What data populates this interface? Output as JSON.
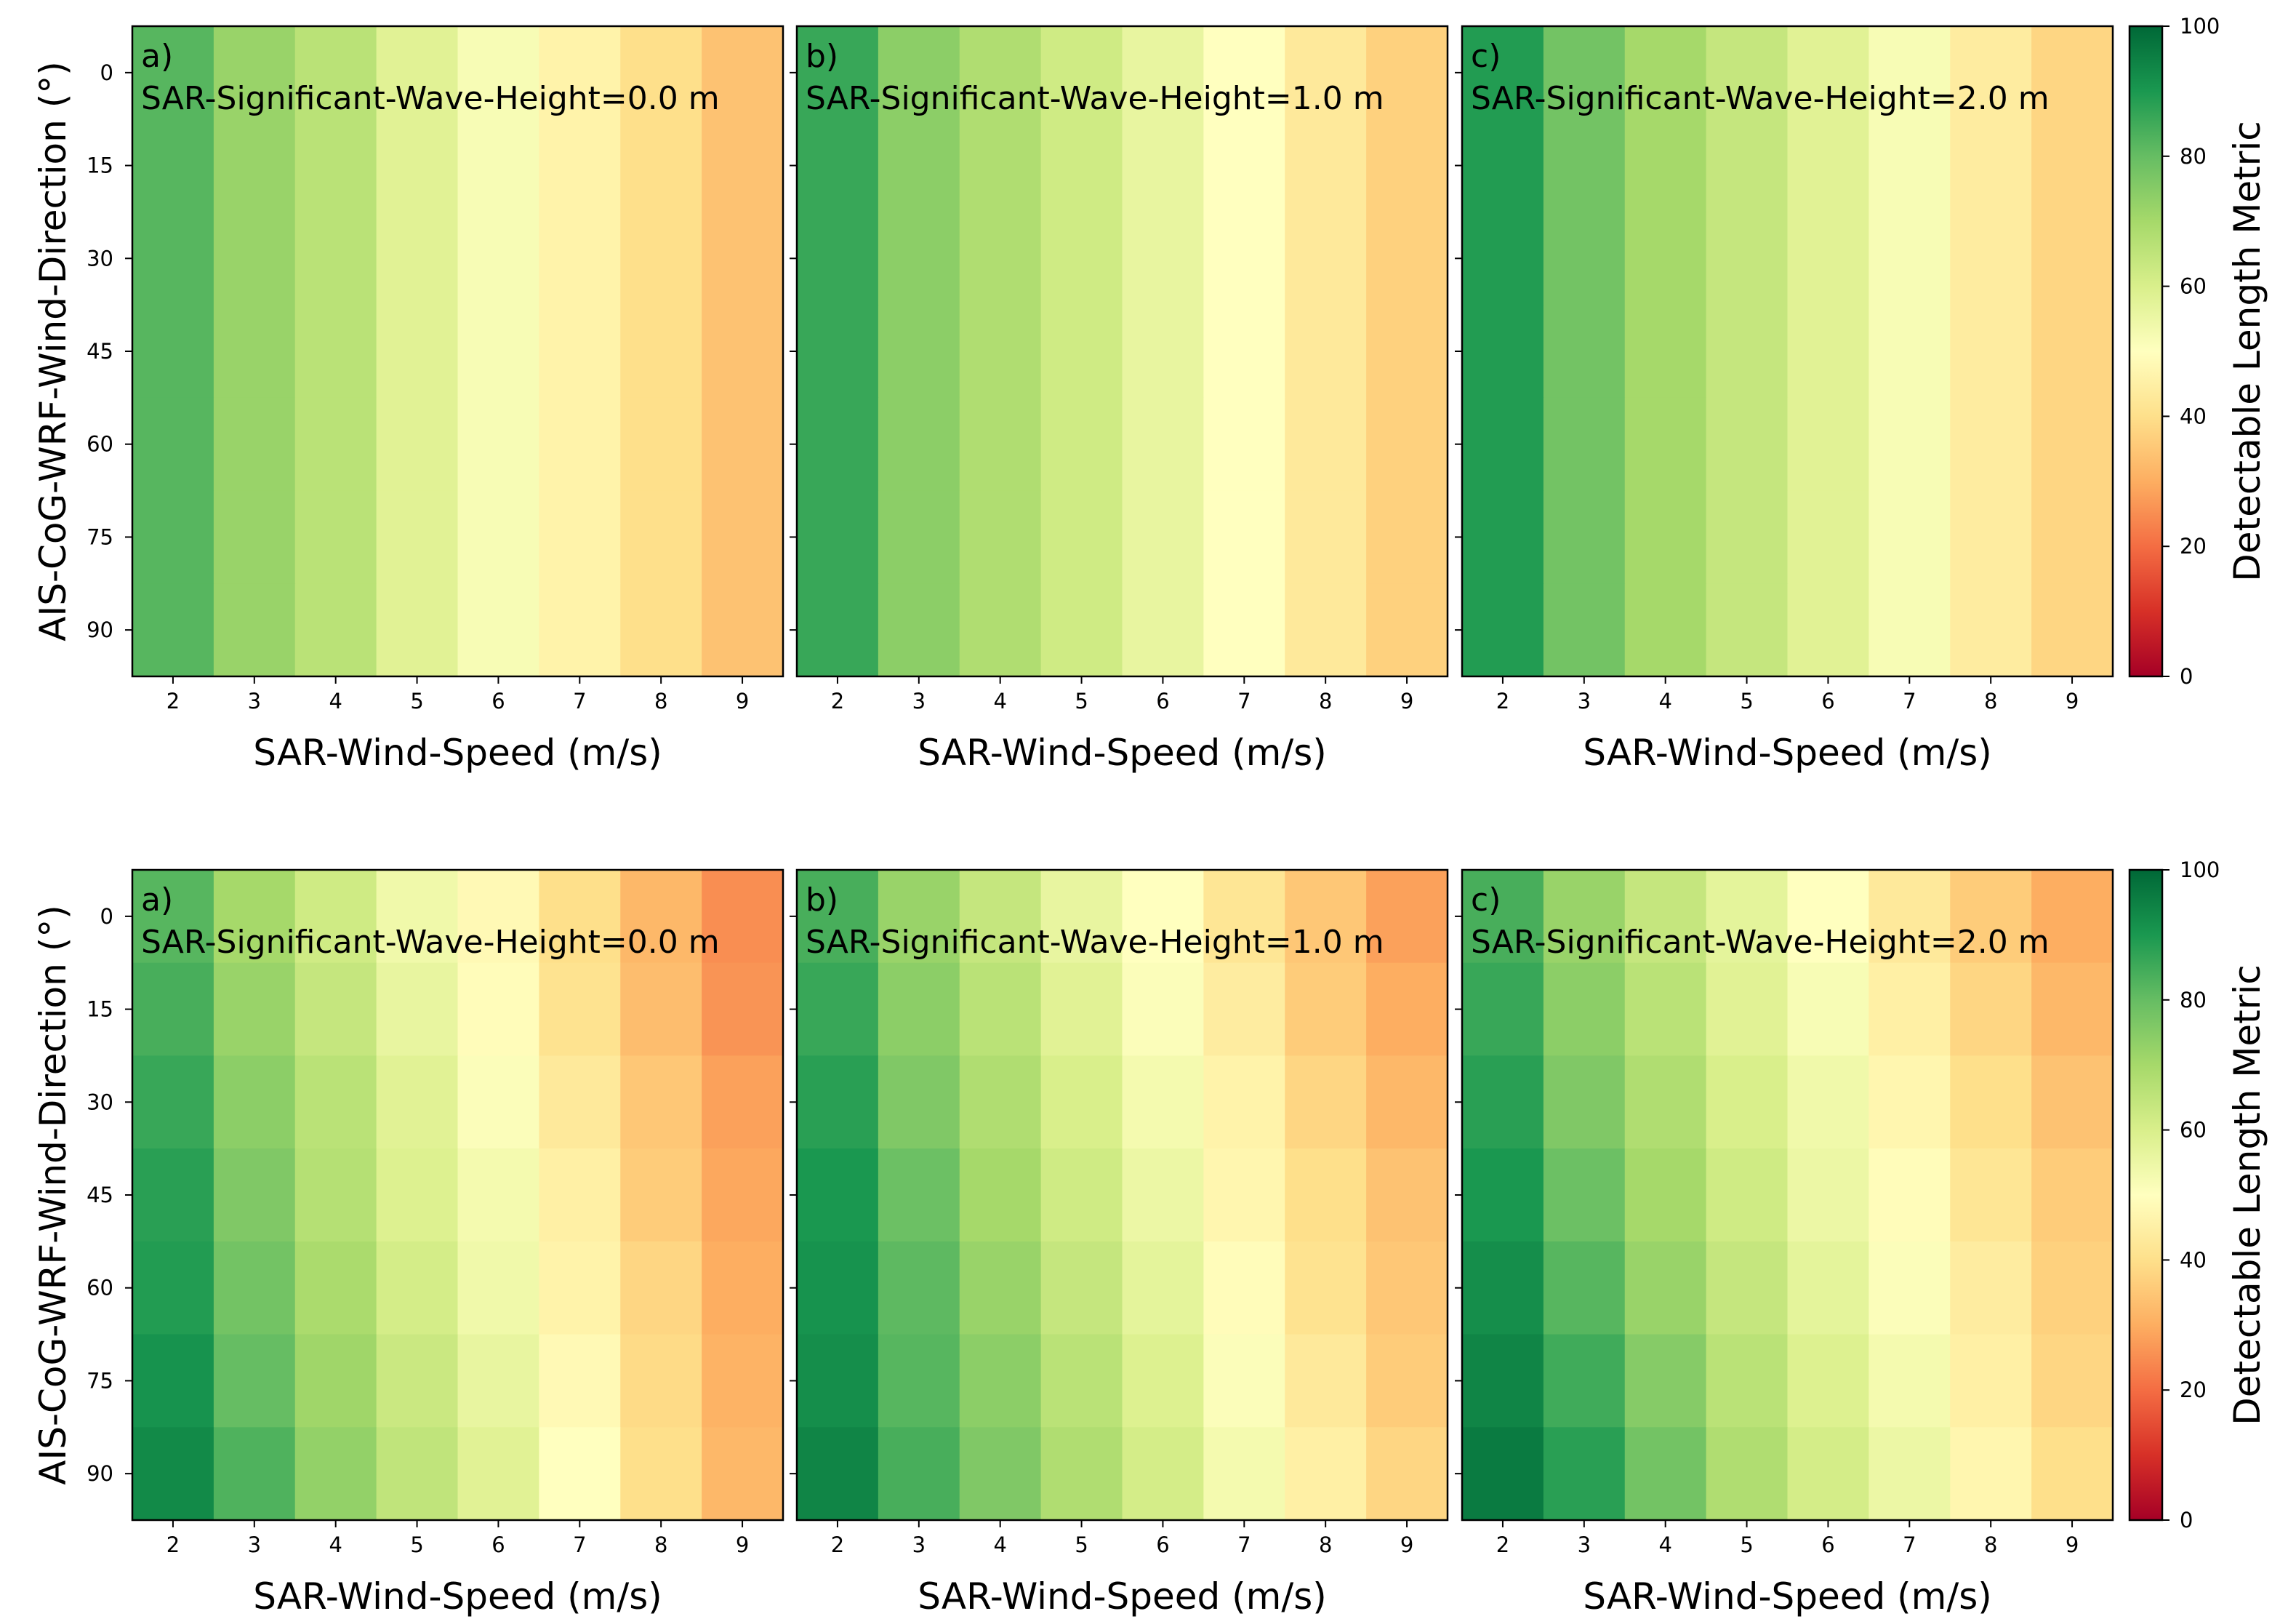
{
  "chart_data": [
    {
      "type": "heatmap",
      "row": "top",
      "colorbar": {
        "label": "Detectable Length Metric",
        "ticks": [
          0,
          20,
          40,
          60,
          80,
          100
        ],
        "range": [
          0,
          100
        ],
        "colormap": "RdYlGn",
        "colors": [
          "#a50026",
          "#d73027",
          "#f46d43",
          "#fdae61",
          "#fee08b",
          "#ffffbf",
          "#d9ef8b",
          "#a6d96a",
          "#66bd63",
          "#1a9850",
          "#006837"
        ]
      },
      "panels": [
        {
          "label": "a)",
          "title": "SAR-Significant-Wave-Height=0.0 m",
          "xlabel": "SAR-Wind-Speed (m/s)",
          "ylabel": "AIS-CoG-WRF-Wind-Direction (°)",
          "x": [
            2,
            3,
            4,
            5,
            6,
            7,
            8,
            9
          ],
          "y": [
            0,
            15,
            30,
            45,
            60,
            75,
            90
          ],
          "x_tick_labels": [
            "2",
            "3",
            "4",
            "5",
            "6",
            "7",
            "8",
            "9"
          ],
          "y_tick_labels": [
            "0",
            "15",
            "30",
            "45",
            "60",
            "75",
            "90"
          ],
          "values": [
            [
              82,
              72,
              66,
              58,
              52,
              46,
              40,
              34
            ],
            [
              82,
              72,
              66,
              58,
              52,
              46,
              40,
              34
            ],
            [
              82,
              72,
              66,
              58,
              52,
              46,
              40,
              34
            ],
            [
              82,
              72,
              66,
              58,
              52,
              46,
              40,
              34
            ],
            [
              82,
              72,
              66,
              58,
              52,
              46,
              40,
              34
            ],
            [
              82,
              72,
              66,
              58,
              52,
              46,
              40,
              34
            ],
            [
              82,
              72,
              66,
              58,
              52,
              46,
              40,
              34
            ]
          ]
        },
        {
          "label": "b)",
          "title": "SAR-Significant-Wave-Height=1.0 m",
          "xlabel": "SAR-Wind-Speed (m/s)",
          "ylabel": "",
          "x": [
            2,
            3,
            4,
            5,
            6,
            7,
            8,
            9
          ],
          "y": [
            0,
            15,
            30,
            45,
            60,
            75,
            90
          ],
          "x_tick_labels": [
            "2",
            "3",
            "4",
            "5",
            "6",
            "7",
            "8",
            "9"
          ],
          "y_tick_labels": [],
          "values": [
            [
              86,
              74,
              68,
              62,
              56,
              50,
              43,
              37
            ],
            [
              86,
              74,
              68,
              62,
              56,
              50,
              43,
              37
            ],
            [
              86,
              74,
              68,
              62,
              56,
              50,
              43,
              37
            ],
            [
              86,
              74,
              68,
              62,
              56,
              50,
              43,
              37
            ],
            [
              86,
              74,
              68,
              62,
              56,
              50,
              43,
              37
            ],
            [
              86,
              74,
              68,
              62,
              56,
              50,
              43,
              37
            ],
            [
              86,
              74,
              68,
              62,
              56,
              50,
              43,
              37
            ]
          ]
        },
        {
          "label": "c)",
          "title": "SAR-Significant-Wave-Height=2.0 m",
          "xlabel": "SAR-Wind-Speed (m/s)",
          "ylabel": "",
          "x": [
            2,
            3,
            4,
            5,
            6,
            7,
            8,
            9
          ],
          "y": [
            0,
            15,
            30,
            45,
            60,
            75,
            90
          ],
          "x_tick_labels": [
            "2",
            "3",
            "4",
            "5",
            "6",
            "7",
            "8",
            "9"
          ],
          "y_tick_labels": [],
          "values": [
            [
              89,
              78,
              70,
              64,
              58,
              52,
              44,
              38
            ],
            [
              89,
              78,
              70,
              64,
              58,
              52,
              44,
              38
            ],
            [
              89,
              78,
              70,
              64,
              58,
              52,
              44,
              38
            ],
            [
              89,
              78,
              70,
              64,
              58,
              52,
              44,
              38
            ],
            [
              89,
              78,
              70,
              64,
              58,
              52,
              44,
              38
            ],
            [
              89,
              78,
              70,
              64,
              58,
              52,
              44,
              38
            ],
            [
              89,
              78,
              70,
              64,
              58,
              52,
              44,
              38
            ]
          ]
        }
      ]
    },
    {
      "type": "heatmap",
      "row": "bottom",
      "colorbar": {
        "label": "Detectable Length Metric",
        "ticks": [
          0,
          20,
          40,
          60,
          80,
          100
        ],
        "range": [
          0,
          100
        ],
        "colormap": "RdYlGn",
        "colors": [
          "#a50026",
          "#d73027",
          "#f46d43",
          "#fdae61",
          "#fee08b",
          "#ffffbf",
          "#d9ef8b",
          "#a6d96a",
          "#66bd63",
          "#1a9850",
          "#006837"
        ]
      },
      "panels": [
        {
          "label": "a)",
          "title": "SAR-Significant-Wave-Height=0.0 m",
          "xlabel": "SAR-Wind-Speed (m/s)",
          "ylabel": "AIS-CoG-WRF-Wind-Direction (°)",
          "x": [
            2,
            3,
            4,
            5,
            6,
            7,
            8,
            9
          ],
          "y": [
            0,
            15,
            30,
            45,
            60,
            75,
            90
          ],
          "x_tick_labels": [
            "2",
            "3",
            "4",
            "5",
            "6",
            "7",
            "8",
            "9"
          ],
          "y_tick_labels": [
            "0",
            "15",
            "30",
            "45",
            "60",
            "75",
            "90"
          ],
          "values": [
            [
              82,
              70,
              62,
              54,
              48,
              40,
              32,
              25
            ],
            [
              84,
              72,
              64,
              56,
              49,
              41,
              33,
              26
            ],
            [
              86,
              74,
              66,
              58,
              51,
              43,
              35,
              28
            ],
            [
              88,
              76,
              67,
              59,
              53,
              45,
              36,
              29
            ],
            [
              89,
              78,
              69,
              61,
              54,
              46,
              38,
              30
            ],
            [
              91,
              80,
              71,
              63,
              56,
              48,
              39,
              31
            ],
            [
              93,
              83,
              73,
              65,
              58,
              50,
              40,
              32
            ]
          ]
        },
        {
          "label": "b)",
          "title": "SAR-Significant-Wave-Height=1.0 m",
          "xlabel": "SAR-Wind-Speed (m/s)",
          "ylabel": "",
          "x": [
            2,
            3,
            4,
            5,
            6,
            7,
            8,
            9
          ],
          "y": [
            0,
            15,
            30,
            45,
            60,
            75,
            90
          ],
          "x_tick_labels": [
            "2",
            "3",
            "4",
            "5",
            "6",
            "7",
            "8",
            "9"
          ],
          "y_tick_labels": [],
          "values": [
            [
              84,
              72,
              64,
              56,
              50,
              42,
              35,
              28
            ],
            [
              86,
              74,
              66,
              58,
              51,
              44,
              36,
              30
            ],
            [
              88,
              76,
              68,
              60,
              53,
              46,
              38,
              32
            ],
            [
              90,
              79,
              70,
              62,
              55,
              47,
              40,
              34
            ],
            [
              91,
              81,
              72,
              64,
              57,
              49,
              41,
              35
            ],
            [
              92,
              82,
              74,
              66,
              59,
              51,
              43,
              36
            ],
            [
              94,
              84,
              76,
              68,
              61,
              53,
              45,
              38
            ]
          ]
        },
        {
          "label": "c)",
          "title": "SAR-Significant-Wave-Height=2.0 m",
          "xlabel": "SAR-Wind-Speed (m/s)",
          "ylabel": "",
          "x": [
            2,
            3,
            4,
            5,
            6,
            7,
            8,
            9
          ],
          "y": [
            0,
            15,
            30,
            45,
            60,
            75,
            90
          ],
          "x_tick_labels": [
            "2",
            "3",
            "4",
            "5",
            "6",
            "7",
            "8",
            "9"
          ],
          "y_tick_labels": [],
          "values": [
            [
              84,
              72,
              64,
              57,
              50,
              43,
              36,
              30
            ],
            [
              86,
              74,
              66,
              58,
              52,
              45,
              38,
              32
            ],
            [
              88,
              76,
              68,
              60,
              54,
              47,
              40,
              34
            ],
            [
              90,
              79,
              70,
              62,
              55,
              49,
              42,
              36
            ],
            [
              92,
              82,
              72,
              64,
              57,
              51,
              44,
              37
            ],
            [
              94,
              85,
              75,
              66,
              59,
              53,
              45,
              38
            ],
            [
              96,
              88,
              78,
              68,
              61,
              55,
              47,
              40
            ]
          ]
        }
      ]
    }
  ]
}
